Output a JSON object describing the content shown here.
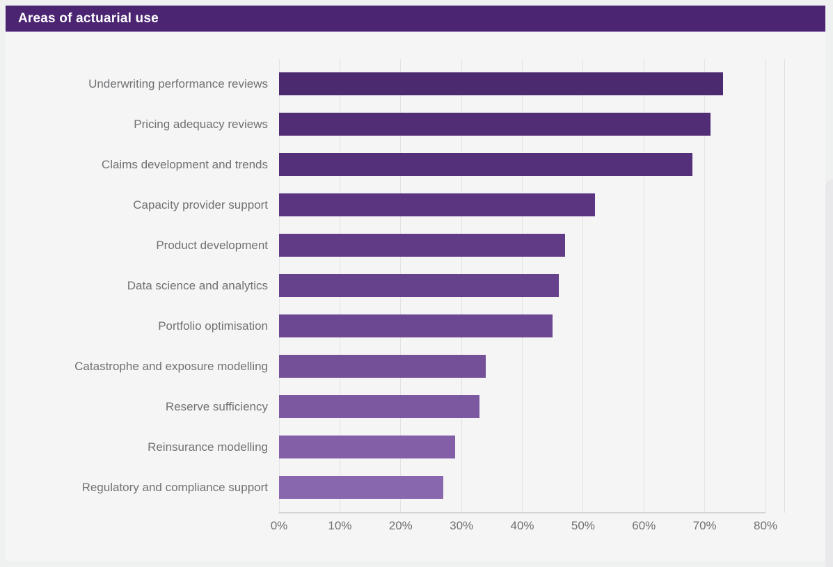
{
  "header": {
    "title": "Areas of actuarial use"
  },
  "chart_data": {
    "type": "bar",
    "orientation": "horizontal",
    "title": "Areas of actuarial use",
    "categories": [
      "Underwriting performance reviews",
      "Pricing adequacy reviews",
      "Claims development and trends",
      "Capacity provider support",
      "Product development",
      "Data science and analytics",
      "Portfolio optimisation",
      "Catastrophe and exposure modelling",
      "Reserve sufficiency",
      "Reinsurance modelling",
      "Regulatory and compliance support"
    ],
    "values": [
      73,
      71,
      68,
      52,
      47,
      46,
      45,
      34,
      33,
      29,
      27
    ],
    "unit": "%",
    "xlabel": "",
    "ylabel": "",
    "xlim": [
      0,
      80
    ],
    "x_ticks": [
      "0%",
      "10%",
      "20%",
      "30%",
      "40%",
      "50%",
      "60%",
      "70%",
      "80%"
    ],
    "grid": "vertical",
    "legend": "none",
    "bar_colors": [
      "#4b2a70",
      "#502d75",
      "#55307a",
      "#5b3580",
      "#613b86",
      "#67428c",
      "#6d4892",
      "#745099",
      "#7b58a0",
      "#825fa7",
      "#8967ae"
    ]
  },
  "colors": {
    "banner_bg": "#4b2572",
    "banner_text": "#ffffff",
    "page_bg": "#eff0f0",
    "card_bg": "#f5f5f6",
    "gridline": "#e3e3e5",
    "axis_line": "#d5d5d8",
    "tick_text": "#6e6e70",
    "label_text": "#717173"
  }
}
